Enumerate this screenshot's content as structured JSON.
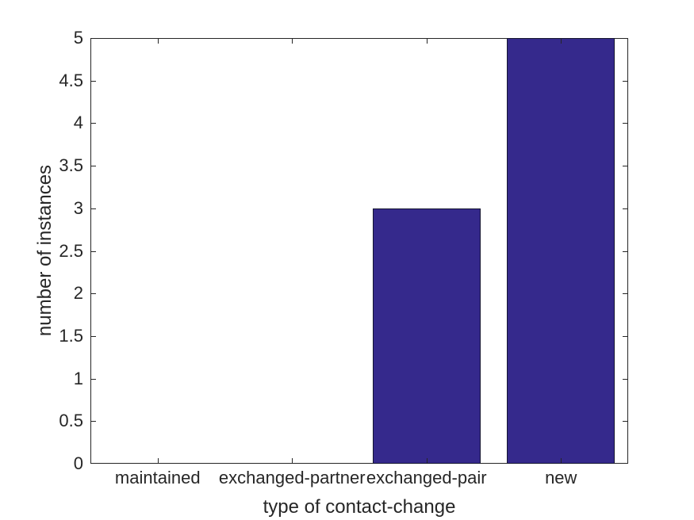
{
  "chart_data": {
    "type": "bar",
    "categories": [
      "maintained",
      "exchanged-partner",
      "exchanged-pair",
      "new"
    ],
    "values": [
      0,
      0,
      3,
      5
    ],
    "xlabel": "type of contact-change",
    "ylabel": "number of instances",
    "ylim": [
      0,
      5
    ],
    "yticks": [
      "0",
      "0.5",
      "1",
      "1.5",
      "2",
      "2.5",
      "3",
      "3.5",
      "4",
      "4.5",
      "5"
    ],
    "grid": false,
    "legend": null,
    "axes_box": true,
    "tick_direction": "in",
    "bar_width_fraction": 0.8,
    "colors": {
      "bar_fill": "#35298c",
      "bar_edge": "#151530",
      "axis": "#262626",
      "text": "#262626",
      "background": "#ffffff"
    }
  }
}
